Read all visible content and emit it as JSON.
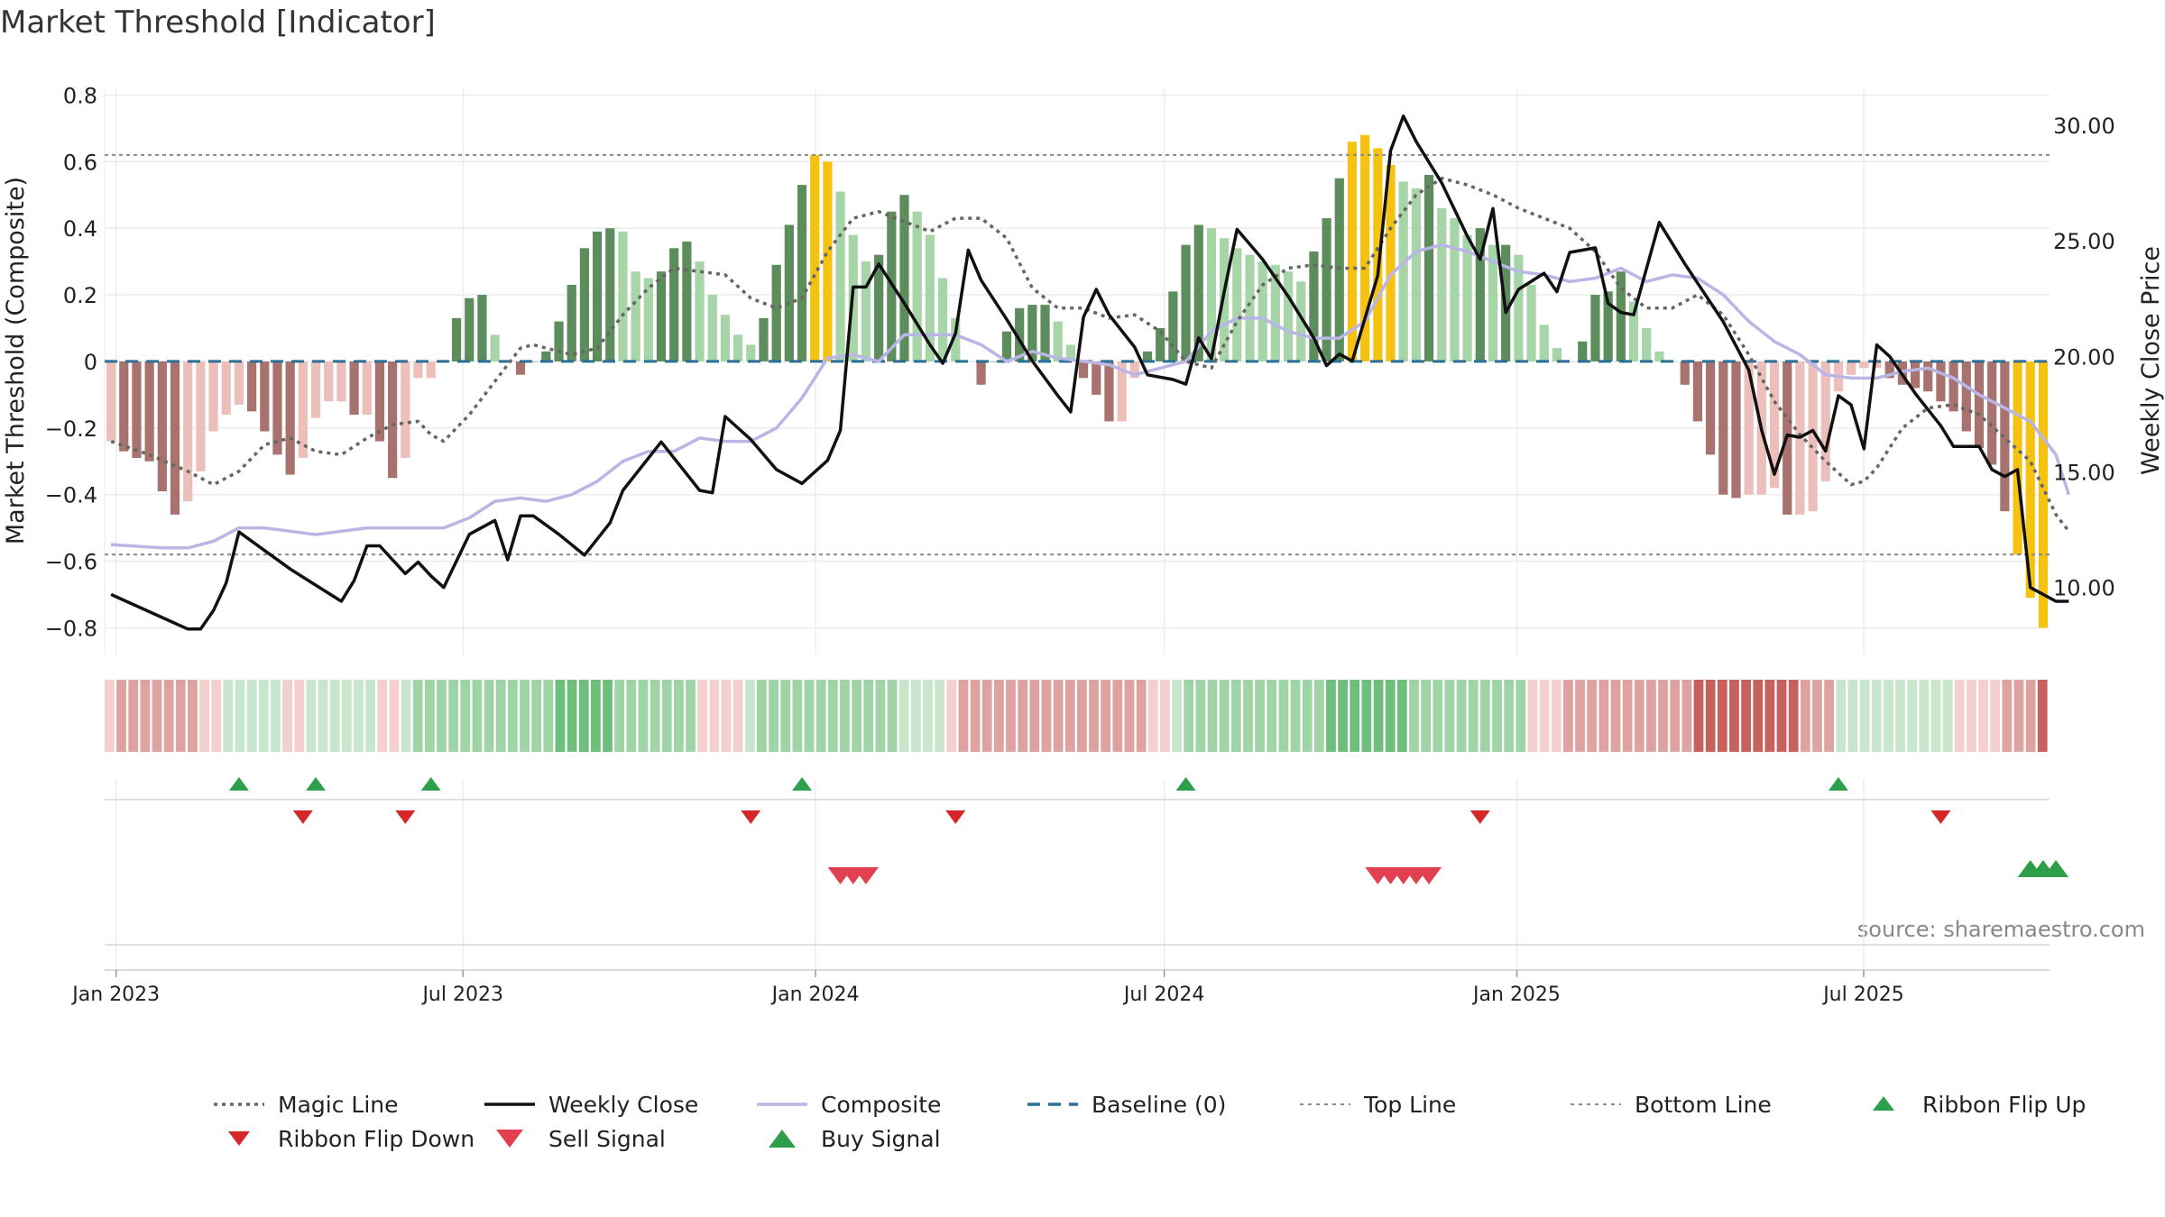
{
  "chart_data": {
    "type": "bar",
    "title": "Market Threshold [Indicator]",
    "ylabel_left": "Market Threshold (Composite)",
    "ylabel_right": "Weekly Close Price",
    "source": "source: sharemaestro.com",
    "x_start": "2022-12-26",
    "x_end": "2025-10-06",
    "x_ticks": [
      {
        "label": "Jan 2023",
        "date": "2023-01-01"
      },
      {
        "label": "Jul 2023",
        "date": "2023-07-01"
      },
      {
        "label": "Jan 2024",
        "date": "2024-01-01"
      },
      {
        "label": "Jul 2024",
        "date": "2024-07-01"
      },
      {
        "label": "Jan 2025",
        "date": "2025-01-01"
      },
      {
        "label": "Jul 2025",
        "date": "2025-07-01"
      }
    ],
    "ylim_left": [
      -0.88,
      0.82
    ],
    "ylim_right": [
      7.1,
      31.6
    ],
    "y_ticks_left": [
      {
        "value": 0.8,
        "label": "0.8"
      },
      {
        "value": 0.6,
        "label": "0.6"
      },
      {
        "value": 0.4,
        "label": "0.4"
      },
      {
        "value": 0.2,
        "label": "0.2"
      },
      {
        "value": 0,
        "label": "0"
      },
      {
        "value": -0.2,
        "label": "−0.2"
      },
      {
        "value": -0.4,
        "label": "−0.4"
      },
      {
        "value": -0.6,
        "label": "−0.6"
      },
      {
        "value": -0.8,
        "label": "−0.8"
      }
    ],
    "y_ticks_right": [
      {
        "value": 30,
        "label": "30.00"
      },
      {
        "value": 25,
        "label": "25.00"
      },
      {
        "value": 20,
        "label": "20.00"
      },
      {
        "value": 15,
        "label": "15.00"
      },
      {
        "value": 10,
        "label": "10.00"
      }
    ],
    "top_line": 0.62,
    "bottom_line": -0.58,
    "baseline": 0,
    "bar_colors": {
      "strong_pos": "#5d8c5d",
      "weak_pos": "#a8d5a8",
      "strong_neg": "#a8736e",
      "weak_neg": "#ecbfbb",
      "extreme": "#f5c211"
    },
    "line_colors": {
      "magic": "#666666",
      "close": "#111111",
      "composite": "#b9b6e6",
      "baseline": "#2a6f97",
      "top": "#8a8a8a",
      "bottom": "#8a8a8a"
    },
    "composite_bars": [
      -0.24,
      -0.27,
      -0.29,
      -0.3,
      -0.39,
      -0.46,
      -0.42,
      -0.33,
      -0.21,
      -0.16,
      -0.13,
      -0.15,
      -0.21,
      -0.28,
      -0.34,
      -0.29,
      -0.17,
      -0.12,
      -0.12,
      -0.16,
      -0.16,
      -0.24,
      -0.35,
      -0.29,
      -0.05,
      -0.05,
      0.0,
      0.13,
      0.19,
      0.2,
      0.08,
      0.0,
      -0.04,
      0.0,
      0.03,
      0.12,
      0.23,
      0.34,
      0.39,
      0.4,
      0.39,
      0.27,
      0.25,
      0.27,
      0.34,
      0.36,
      0.3,
      0.2,
      0.14,
      0.08,
      0.05,
      0.13,
      0.29,
      0.41,
      0.53,
      0.62,
      0.6,
      0.51,
      0.38,
      0.3,
      0.32,
      0.45,
      0.5,
      0.45,
      0.38,
      0.25,
      0.13,
      0.0,
      -0.07,
      0.0,
      0.09,
      0.16,
      0.17,
      0.17,
      0.12,
      0.05,
      -0.05,
      -0.1,
      -0.18,
      -0.18,
      -0.05,
      0.03,
      0.1,
      0.21,
      0.35,
      0.41,
      0.4,
      0.37,
      0.34,
      0.32,
      0.3,
      0.29,
      0.27,
      0.24,
      0.33,
      0.43,
      0.55,
      0.66,
      0.68,
      0.64,
      0.59,
      0.54,
      0.52,
      0.56,
      0.46,
      0.43,
      0.38,
      0.4,
      0.35,
      0.35,
      0.32,
      0.23,
      0.11,
      0.04,
      0.0,
      0.06,
      0.2,
      0.21,
      0.27,
      0.18,
      0.1,
      0.03,
      0.0,
      -0.07,
      -0.18,
      -0.28,
      -0.4,
      -0.41,
      -0.4,
      -0.4,
      -0.38,
      -0.46,
      -0.46,
      -0.45,
      -0.36,
      -0.09,
      -0.04,
      -0.02,
      -0.02,
      -0.05,
      -0.07,
      -0.08,
      -0.09,
      -0.12,
      -0.15,
      -0.21,
      -0.26,
      -0.31,
      -0.45,
      -0.58,
      -0.71,
      -0.8
    ],
    "weekly_close": [
      [
        0,
        9.7
      ],
      [
        4,
        8.7
      ],
      [
        6,
        8.2
      ],
      [
        7,
        8.2
      ],
      [
        8,
        9.0
      ],
      [
        9,
        10.2
      ],
      [
        10,
        12.4
      ],
      [
        12,
        11.6
      ],
      [
        14,
        10.8
      ],
      [
        16,
        10.1
      ],
      [
        18,
        9.4
      ],
      [
        19,
        10.3
      ],
      [
        20,
        11.8
      ],
      [
        21,
        11.8
      ],
      [
        22,
        11.2
      ],
      [
        23,
        10.6
      ],
      [
        24,
        11.1
      ],
      [
        25,
        10.5
      ],
      [
        26,
        10.0
      ],
      [
        28,
        12.3
      ],
      [
        30,
        12.9
      ],
      [
        31,
        11.2
      ],
      [
        32,
        13.1
      ],
      [
        33,
        13.1
      ],
      [
        35,
        12.3
      ],
      [
        37,
        11.4
      ],
      [
        39,
        12.8
      ],
      [
        40,
        14.2
      ],
      [
        43,
        16.3
      ],
      [
        46,
        14.2
      ],
      [
        47,
        14.1
      ],
      [
        48,
        17.4
      ],
      [
        50,
        16.4
      ],
      [
        52,
        15.1
      ],
      [
        54,
        14.5
      ],
      [
        56,
        15.5
      ],
      [
        57,
        16.8
      ],
      [
        58,
        23.0
      ],
      [
        59,
        23.0
      ],
      [
        60,
        24.0
      ],
      [
        62,
        22.3
      ],
      [
        64,
        20.5
      ],
      [
        65,
        19.7
      ],
      [
        66,
        21.0
      ],
      [
        67,
        24.6
      ],
      [
        68,
        23.3
      ],
      [
        70,
        21.6
      ],
      [
        72,
        19.8
      ],
      [
        74,
        18.3
      ],
      [
        75,
        17.6
      ],
      [
        76,
        21.7
      ],
      [
        77,
        22.9
      ],
      [
        78,
        21.8
      ],
      [
        80,
        20.4
      ],
      [
        81,
        19.2
      ],
      [
        83,
        19.0
      ],
      [
        84,
        18.8
      ],
      [
        85,
        20.8
      ],
      [
        86,
        19.9
      ],
      [
        87,
        22.8
      ],
      [
        88,
        25.5
      ],
      [
        90,
        24.2
      ],
      [
        92,
        22.6
      ],
      [
        94,
        20.8
      ],
      [
        95,
        19.6
      ],
      [
        96,
        20.1
      ],
      [
        97,
        19.8
      ],
      [
        99,
        23.5
      ],
      [
        100,
        28.9
      ],
      [
        101,
        30.4
      ],
      [
        102,
        29.3
      ],
      [
        104,
        27.5
      ],
      [
        106,
        25.2
      ],
      [
        107,
        24.2
      ],
      [
        108,
        26.4
      ],
      [
        109,
        21.9
      ],
      [
        110,
        22.9
      ],
      [
        112,
        23.6
      ],
      [
        113,
        22.8
      ],
      [
        114,
        24.5
      ],
      [
        116,
        24.7
      ],
      [
        117,
        22.3
      ],
      [
        118,
        21.9
      ],
      [
        119,
        21.8
      ],
      [
        121,
        25.8
      ],
      [
        123,
        24.0
      ],
      [
        126,
        21.5
      ],
      [
        128,
        19.4
      ],
      [
        129,
        16.8
      ],
      [
        130,
        14.9
      ],
      [
        131,
        16.6
      ],
      [
        132,
        16.5
      ],
      [
        133,
        16.8
      ],
      [
        134,
        15.9
      ],
      [
        135,
        18.3
      ],
      [
        136,
        17.9
      ],
      [
        137,
        16.0
      ],
      [
        138,
        20.5
      ],
      [
        139,
        20.0
      ],
      [
        141,
        18.4
      ],
      [
        143,
        17.0
      ],
      [
        144,
        16.1
      ],
      [
        145,
        16.1
      ],
      [
        146,
        16.1
      ],
      [
        147,
        15.1
      ],
      [
        148,
        14.8
      ],
      [
        149,
        15.1
      ],
      [
        150,
        10.0
      ],
      [
        152,
        9.4
      ],
      [
        153,
        9.4
      ]
    ],
    "magic_line": [
      [
        0,
        -0.24
      ],
      [
        3,
        -0.28
      ],
      [
        6,
        -0.33
      ],
      [
        8,
        -0.37
      ],
      [
        10,
        -0.33
      ],
      [
        12,
        -0.25
      ],
      [
        14,
        -0.23
      ],
      [
        16,
        -0.27
      ],
      [
        18,
        -0.28
      ],
      [
        20,
        -0.23
      ],
      [
        22,
        -0.19
      ],
      [
        24,
        -0.18
      ],
      [
        25,
        -0.22
      ],
      [
        26,
        -0.24
      ],
      [
        28,
        -0.16
      ],
      [
        30,
        -0.06
      ],
      [
        32,
        0.04
      ],
      [
        33,
        0.05
      ],
      [
        34,
        0.04
      ],
      [
        36,
        0.02
      ],
      [
        38,
        0.04
      ],
      [
        40,
        0.14
      ],
      [
        42,
        0.22
      ],
      [
        44,
        0.28
      ],
      [
        46,
        0.27
      ],
      [
        48,
        0.26
      ],
      [
        50,
        0.19
      ],
      [
        52,
        0.16
      ],
      [
        54,
        0.19
      ],
      [
        56,
        0.33
      ],
      [
        58,
        0.43
      ],
      [
        60,
        0.45
      ],
      [
        62,
        0.42
      ],
      [
        64,
        0.39
      ],
      [
        66,
        0.43
      ],
      [
        68,
        0.43
      ],
      [
        70,
        0.37
      ],
      [
        72,
        0.22
      ],
      [
        74,
        0.16
      ],
      [
        76,
        0.16
      ],
      [
        78,
        0.13
      ],
      [
        80,
        0.14
      ],
      [
        82,
        0.09
      ],
      [
        84,
        0.0
      ],
      [
        86,
        -0.02
      ],
      [
        88,
        0.12
      ],
      [
        90,
        0.23
      ],
      [
        92,
        0.28
      ],
      [
        94,
        0.29
      ],
      [
        96,
        0.28
      ],
      [
        98,
        0.28
      ],
      [
        100,
        0.4
      ],
      [
        102,
        0.5
      ],
      [
        104,
        0.55
      ],
      [
        106,
        0.53
      ],
      [
        108,
        0.5
      ],
      [
        110,
        0.46
      ],
      [
        112,
        0.43
      ],
      [
        114,
        0.4
      ],
      [
        116,
        0.33
      ],
      [
        118,
        0.22
      ],
      [
        120,
        0.16
      ],
      [
        122,
        0.16
      ],
      [
        124,
        0.2
      ],
      [
        126,
        0.14
      ],
      [
        128,
        0.02
      ],
      [
        130,
        -0.12
      ],
      [
        132,
        -0.22
      ],
      [
        134,
        -0.3
      ],
      [
        136,
        -0.37
      ],
      [
        137,
        -0.36
      ],
      [
        138,
        -0.32
      ],
      [
        140,
        -0.2
      ],
      [
        142,
        -0.14
      ],
      [
        144,
        -0.13
      ],
      [
        146,
        -0.16
      ],
      [
        148,
        -0.23
      ],
      [
        150,
        -0.3
      ],
      [
        152,
        -0.46
      ],
      [
        153,
        -0.51
      ]
    ],
    "composite_line": [
      [
        0,
        -0.55
      ],
      [
        4,
        -0.56
      ],
      [
        6,
        -0.56
      ],
      [
        8,
        -0.54
      ],
      [
        10,
        -0.5
      ],
      [
        12,
        -0.5
      ],
      [
        14,
        -0.51
      ],
      [
        16,
        -0.52
      ],
      [
        18,
        -0.51
      ],
      [
        20,
        -0.5
      ],
      [
        22,
        -0.5
      ],
      [
        24,
        -0.5
      ],
      [
        26,
        -0.5
      ],
      [
        28,
        -0.47
      ],
      [
        30,
        -0.42
      ],
      [
        32,
        -0.41
      ],
      [
        34,
        -0.42
      ],
      [
        36,
        -0.4
      ],
      [
        38,
        -0.36
      ],
      [
        40,
        -0.3
      ],
      [
        42,
        -0.27
      ],
      [
        44,
        -0.27
      ],
      [
        46,
        -0.23
      ],
      [
        48,
        -0.24
      ],
      [
        50,
        -0.24
      ],
      [
        52,
        -0.2
      ],
      [
        54,
        -0.11
      ],
      [
        56,
        0.01
      ],
      [
        58,
        0.02
      ],
      [
        60,
        0.0
      ],
      [
        62,
        0.08
      ],
      [
        64,
        0.08
      ],
      [
        66,
        0.08
      ],
      [
        68,
        0.05
      ],
      [
        70,
        0.0
      ],
      [
        72,
        0.03
      ],
      [
        74,
        0.01
      ],
      [
        76,
        0.0
      ],
      [
        78,
        -0.01
      ],
      [
        80,
        -0.04
      ],
      [
        82,
        -0.02
      ],
      [
        84,
        0.0
      ],
      [
        86,
        0.09
      ],
      [
        88,
        0.13
      ],
      [
        90,
        0.13
      ],
      [
        92,
        0.09
      ],
      [
        94,
        0.07
      ],
      [
        96,
        0.07
      ],
      [
        98,
        0.12
      ],
      [
        100,
        0.26
      ],
      [
        102,
        0.33
      ],
      [
        104,
        0.35
      ],
      [
        106,
        0.33
      ],
      [
        108,
        0.3
      ],
      [
        110,
        0.27
      ],
      [
        112,
        0.26
      ],
      [
        114,
        0.24
      ],
      [
        116,
        0.25
      ],
      [
        118,
        0.28
      ],
      [
        120,
        0.24
      ],
      [
        122,
        0.26
      ],
      [
        124,
        0.25
      ],
      [
        126,
        0.2
      ],
      [
        128,
        0.12
      ],
      [
        130,
        0.06
      ],
      [
        132,
        0.02
      ],
      [
        134,
        -0.04
      ],
      [
        136,
        -0.05
      ],
      [
        138,
        -0.05
      ],
      [
        140,
        -0.03
      ],
      [
        142,
        -0.02
      ],
      [
        144,
        -0.05
      ],
      [
        146,
        -0.1
      ],
      [
        148,
        -0.14
      ],
      [
        150,
        -0.18
      ],
      [
        152,
        -0.28
      ],
      [
        153,
        -0.4
      ]
    ],
    "ribbon_levels": [
      -1,
      -2,
      -2,
      -2,
      -2,
      -2,
      -2,
      -2,
      -1,
      -1,
      1,
      1,
      1,
      1,
      1,
      -1,
      -1,
      1,
      1,
      1,
      1,
      1,
      1,
      -1,
      -1,
      1,
      2,
      2,
      2,
      2,
      2,
      2,
      2,
      2,
      2,
      2,
      2,
      2,
      3,
      3,
      3,
      3,
      3,
      2,
      2,
      2,
      2,
      2,
      2,
      2,
      -1,
      -1,
      -1,
      -1,
      1,
      2,
      2,
      2,
      2,
      2,
      2,
      2,
      2,
      2,
      2,
      2,
      2,
      1,
      1,
      1,
      1,
      -1,
      -2,
      -2,
      -2,
      -2,
      -2,
      -2,
      -2,
      -2,
      -2,
      -2,
      -2,
      -2,
      -2,
      -2,
      -2,
      -2,
      -1,
      -1,
      1,
      2,
      2,
      2,
      2,
      2,
      2,
      2,
      2,
      2,
      2,
      2,
      2,
      3,
      3,
      3,
      3,
      3,
      3,
      3,
      2,
      2,
      2,
      2,
      2,
      2,
      2,
      2,
      2,
      2,
      -1,
      -1,
      -1,
      -2,
      -2,
      -2,
      -2,
      -2,
      -2,
      -2,
      -2,
      -2,
      -2,
      -2,
      -3,
      -3,
      -3,
      -3,
      -3,
      -3,
      -3,
      -3,
      -3,
      -2,
      -2,
      -2,
      1,
      1,
      1,
      1,
      1,
      1,
      1,
      1,
      1,
      1,
      -1,
      -1,
      -1,
      -1,
      -2,
      -2,
      -2,
      -3
    ],
    "ribbon_colors": {
      "p1": "#c8e6cc",
      "p2": "#9fd4a6",
      "p3": "#6fbf7c",
      "n1": "#f3cfcd",
      "n2": "#dea3a0",
      "n3": "#c7615d"
    },
    "ribbon_flip_up": [
      10,
      16,
      25,
      54,
      84,
      135
    ],
    "ribbon_flip_down": [
      15,
      23,
      50,
      66,
      107,
      143
    ],
    "sell_signals": [
      57,
      58,
      59,
      99,
      100,
      101,
      102,
      103
    ],
    "buy_signals": [
      150,
      151,
      152
    ],
    "marker_colors": {
      "flip_up": "#2ca04c",
      "flip_down": "#d62728",
      "sell": "#e04050",
      "buy": "#2e9e48"
    },
    "legend": [
      {
        "label": "Magic Line",
        "kind": "dotted",
        "color": "#666666"
      },
      {
        "label": "Weekly Close",
        "kind": "solid",
        "color": "#111111"
      },
      {
        "label": "Composite",
        "kind": "solid",
        "color": "#b9b6e6"
      },
      {
        "label": "Baseline (0)",
        "kind": "dashed",
        "color": "#2a6f97"
      },
      {
        "label": "Top Line",
        "kind": "dotted",
        "color": "#8a8a8a"
      },
      {
        "label": "Bottom Line",
        "kind": "dotted",
        "color": "#8a8a8a"
      },
      {
        "label": "Ribbon Flip Up",
        "kind": "up",
        "color": "#2ca04c"
      },
      {
        "label": "Ribbon Flip Down",
        "kind": "down",
        "color": "#d62728"
      },
      {
        "label": "Sell Signal",
        "kind": "down-large",
        "color": "#e04050"
      },
      {
        "label": "Buy Signal",
        "kind": "up-large",
        "color": "#2e9e48"
      }
    ],
    "legend_placement": "bottom"
  }
}
